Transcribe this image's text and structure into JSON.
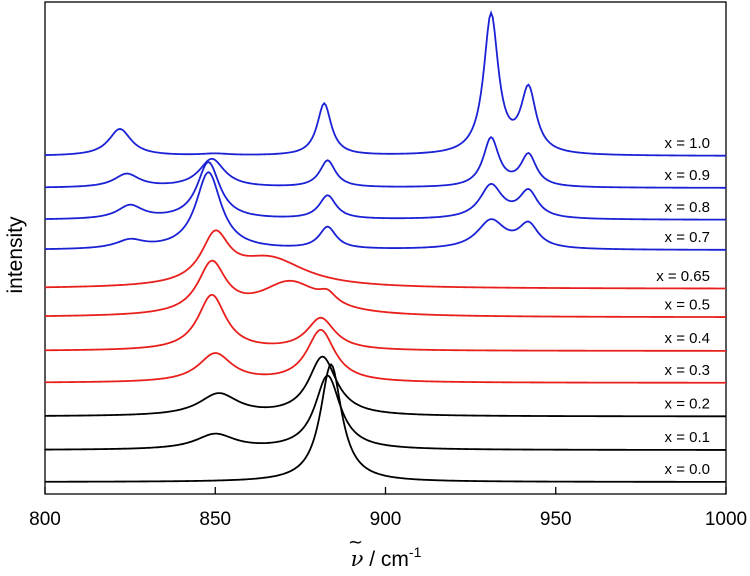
{
  "chart_data": {
    "type": "line",
    "title": "",
    "xlabel": "ν̃ / cm",
    "xlabel_symbol": "ν",
    "xlabel_rest": " / cm",
    "xlabel_superscript": "-1",
    "ylabel": "intensity",
    "xlim": [
      800,
      1000
    ],
    "xticks": [
      800,
      850,
      900,
      950,
      1000
    ],
    "grid": false,
    "colors": {
      "binary_low": "#000000",
      "binary_mid": "#e8201c",
      "binary_high": "#1a22d4"
    },
    "series": [
      {
        "name": "x = 0.0",
        "color": "#000000",
        "baseline": 0.0,
        "peaks": [
          {
            "x": 884,
            "h": 3.5,
            "w": 3.8
          }
        ]
      },
      {
        "name": "x = 0.1",
        "color": "#000000",
        "baseline": 0.95,
        "peaks": [
          {
            "x": 850,
            "h": 0.45,
            "w": 7
          },
          {
            "x": 883,
            "h": 2.2,
            "w": 4.5
          }
        ]
      },
      {
        "name": "x = 0.2",
        "color": "#000000",
        "baseline": 1.95,
        "peaks": [
          {
            "x": 851,
            "h": 0.65,
            "w": 7
          },
          {
            "x": 881.5,
            "h": 1.75,
            "w": 5
          }
        ]
      },
      {
        "name": "x = 0.3",
        "color": "#e8201c",
        "baseline": 2.95,
        "peaks": [
          {
            "x": 850,
            "h": 0.85,
            "w": 6
          },
          {
            "x": 881,
            "h": 1.55,
            "w": 5
          }
        ]
      },
      {
        "name": "x = 0.4",
        "color": "#e8201c",
        "baseline": 3.9,
        "peaks": [
          {
            "x": 849,
            "h": 1.65,
            "w": 5
          },
          {
            "x": 881,
            "h": 0.95,
            "w": 5
          }
        ]
      },
      {
        "name": "x = 0.5",
        "color": "#e8201c",
        "baseline": 4.9,
        "peaks": [
          {
            "x": 849,
            "h": 1.5,
            "w": 5
          },
          {
            "x": 872,
            "h": 1.0,
            "w": 11
          },
          {
            "x": 883,
            "h": 0.3,
            "w": 3
          }
        ]
      },
      {
        "name": "x = 0.65",
        "color": "#e8201c",
        "baseline": 5.75,
        "peaks": [
          {
            "x": 850,
            "h": 1.4,
            "w": 5
          },
          {
            "x": 866,
            "h": 0.85,
            "w": 13
          }
        ]
      },
      {
        "name": "x = 0.7",
        "color": "#1a22d4",
        "baseline": 6.9,
        "peaks": [
          {
            "x": 825,
            "h": 0.25,
            "w": 5
          },
          {
            "x": 848,
            "h": 2.3,
            "w": 4.5
          },
          {
            "x": 883,
            "h": 0.65,
            "w": 3
          },
          {
            "x": 931,
            "h": 0.85,
            "w": 5
          },
          {
            "x": 942,
            "h": 0.7,
            "w": 3.5
          }
        ]
      },
      {
        "name": "x = 0.8",
        "color": "#1a22d4",
        "baseline": 7.8,
        "peaks": [
          {
            "x": 825,
            "h": 0.4,
            "w": 4.5
          },
          {
            "x": 848,
            "h": 1.7,
            "w": 4
          },
          {
            "x": 883,
            "h": 0.7,
            "w": 3
          },
          {
            "x": 931,
            "h": 1.0,
            "w": 4
          },
          {
            "x": 942,
            "h": 0.8,
            "w": 3.3
          }
        ]
      },
      {
        "name": "x = 0.9",
        "color": "#1a22d4",
        "baseline": 8.75,
        "peaks": [
          {
            "x": 824,
            "h": 0.4,
            "w": 4.5
          },
          {
            "x": 849,
            "h": 0.85,
            "w": 4.5
          },
          {
            "x": 883,
            "h": 0.8,
            "w": 2.8
          },
          {
            "x": 931,
            "h": 1.45,
            "w": 2.8
          },
          {
            "x": 942,
            "h": 0.95,
            "w": 2.8
          }
        ]
      },
      {
        "name": "x = 1.0",
        "color": "#1a22d4",
        "baseline": 9.7,
        "peaks": [
          {
            "x": 822,
            "h": 0.8,
            "w": 4
          },
          {
            "x": 850,
            "h": 0.05,
            "w": 5
          },
          {
            "x": 882,
            "h": 1.55,
            "w": 2.5
          },
          {
            "x": 931,
            "h": 4.15,
            "w": 2.6
          },
          {
            "x": 942,
            "h": 1.9,
            "w": 2.7
          }
        ]
      }
    ]
  }
}
